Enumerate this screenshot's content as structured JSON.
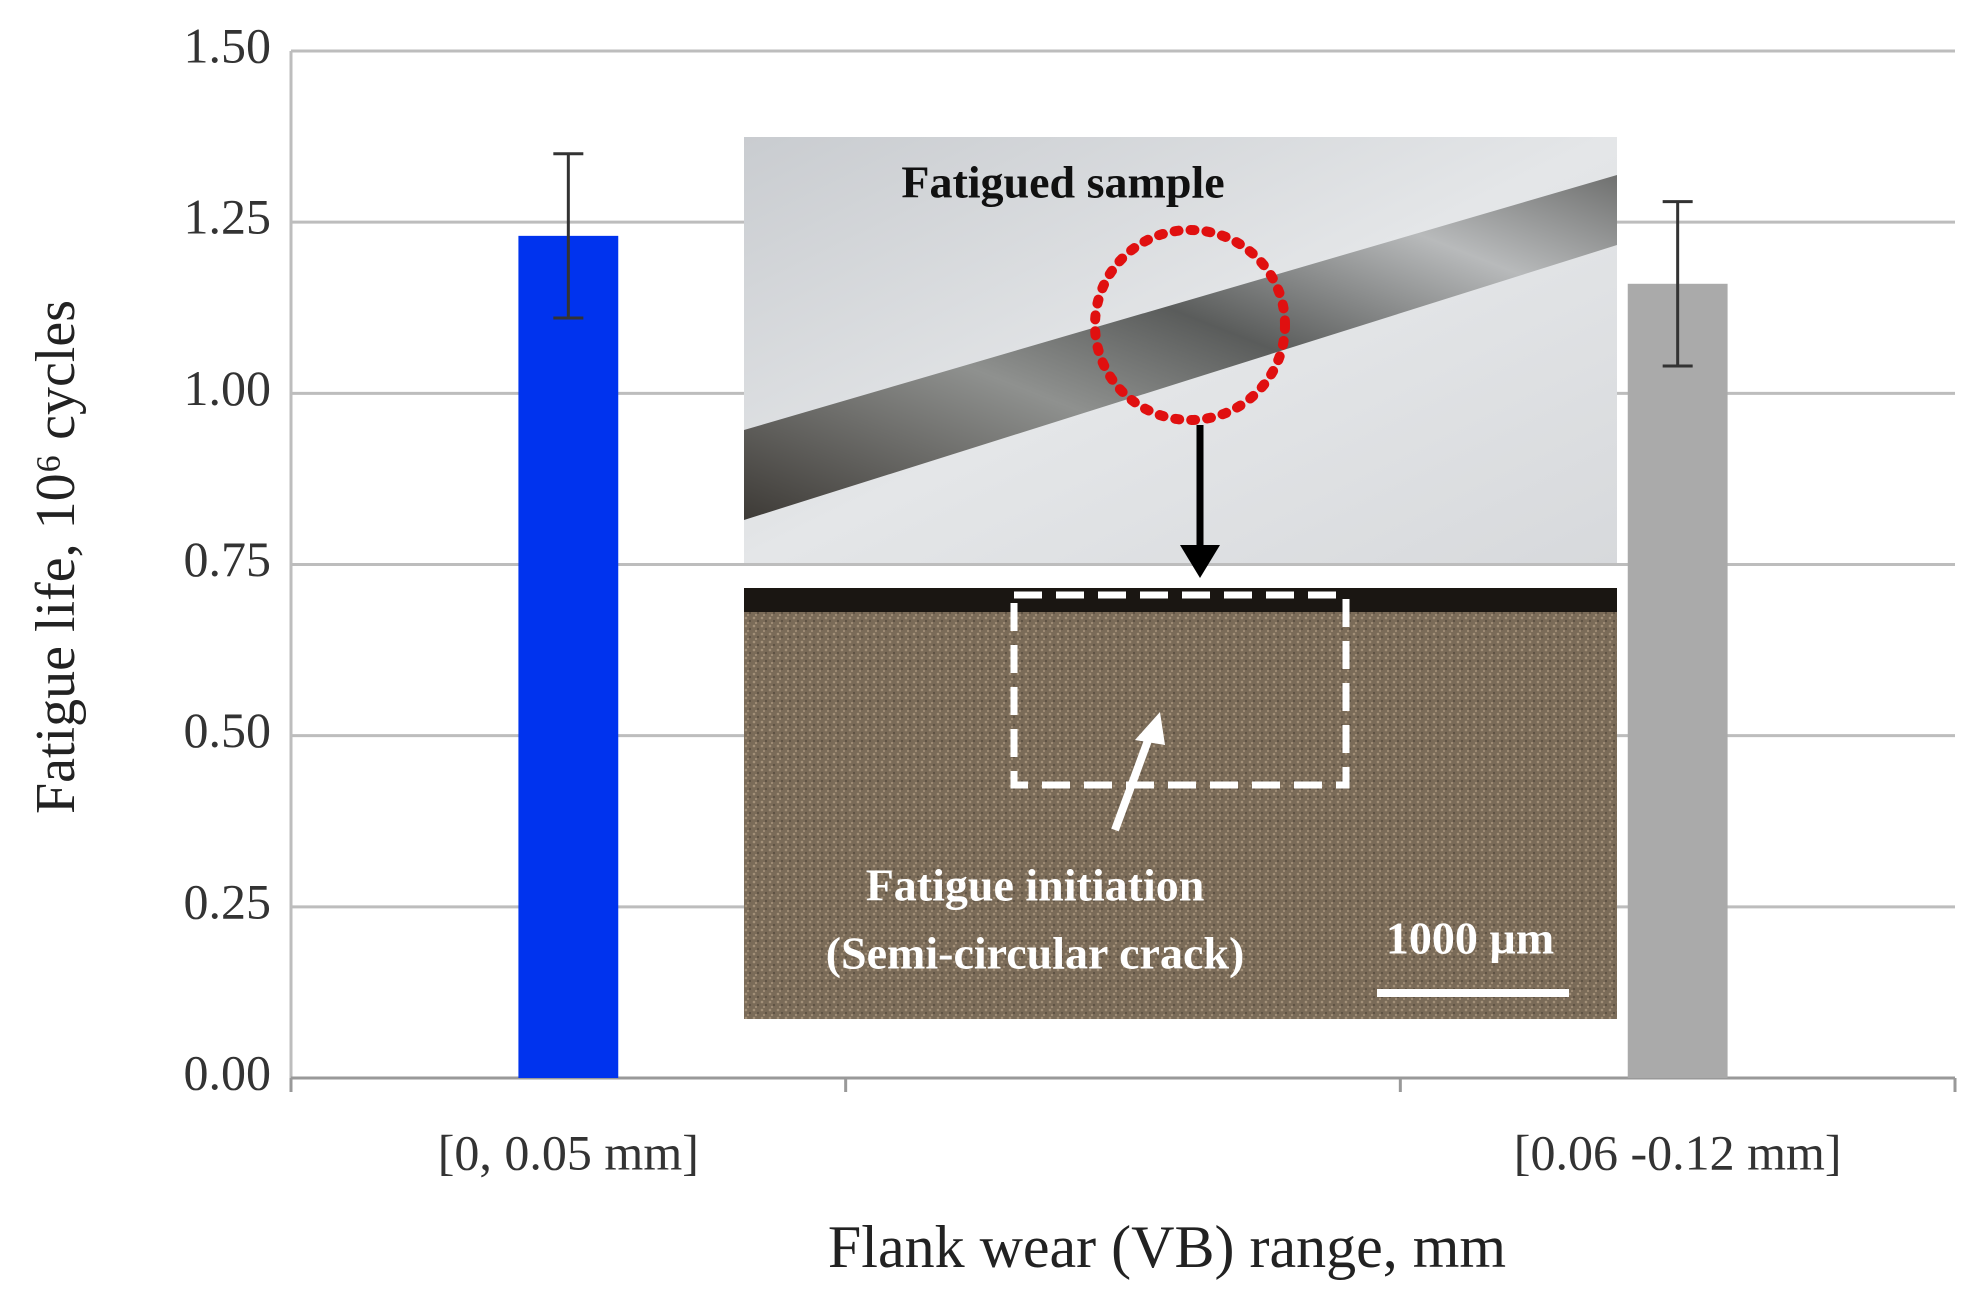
{
  "chart_data": {
    "type": "bar",
    "x_label": "Flank wear (VB) range, mm",
    "y_label": "Fatigue life, 10⁶ cycles",
    "categories": [
      "[0, 0.05 mm]",
      null,
      "[0.06 -0.12 mm]"
    ],
    "values": [
      1.23,
      null,
      1.16
    ],
    "errors": [
      0.12,
      null,
      0.12
    ],
    "colors": [
      "#0033ee",
      null,
      "#aaaaaa"
    ],
    "ylim": [
      0,
      1.5
    ],
    "yticks": [
      {
        "value": 0,
        "label": "0.00"
      },
      {
        "value": 0.25,
        "label": "0.25"
      },
      {
        "value": 0.5,
        "label": "0.50"
      },
      {
        "value": 0.75,
        "label": "0.75"
      },
      {
        "value": 1,
        "label": "1.00"
      },
      {
        "value": 1.25,
        "label": "1.25"
      },
      {
        "value": 1.5,
        "label": "1.50"
      }
    ],
    "grid": true,
    "annotations": [
      "Fatigued sample",
      "Fatigue initiation",
      "(Semi-circular crack)",
      "1000 µm"
    ]
  }
}
